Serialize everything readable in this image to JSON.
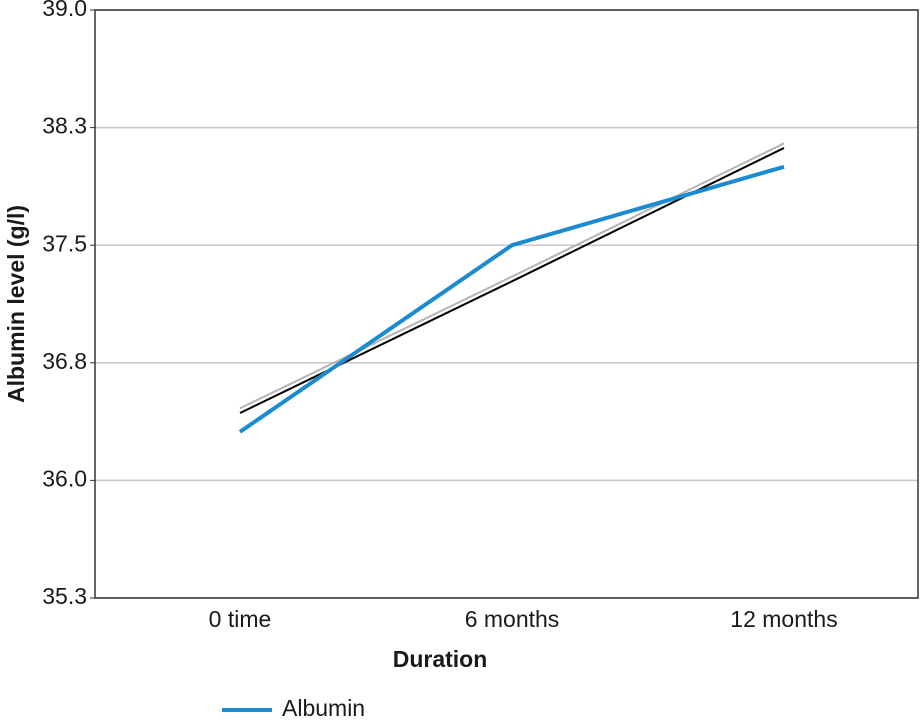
{
  "chart_data": {
    "type": "line",
    "x_label": "Duration",
    "y_label": "Albumin level (g/l)",
    "categories": [
      "0 time",
      "6 months",
      "12 months"
    ],
    "series": [
      {
        "name": "Albumin",
        "color": "#1b8ad0",
        "values": [
          36.31,
          37.5,
          38.0
        ]
      }
    ],
    "trendlines": [
      {
        "color": "#b4b4b4",
        "values": [
          36.46,
          37.3,
          38.15
        ]
      },
      {
        "color": "#000000",
        "values": [
          36.43,
          37.27,
          38.12
        ]
      }
    ],
    "ylim": [
      35.25,
      39.0
    ],
    "yticks": [
      {
        "value": 35.25,
        "label": "35.3"
      },
      {
        "value": 36.0,
        "label": "36.0"
      },
      {
        "value": 36.75,
        "label": "36.8"
      },
      {
        "value": 37.5,
        "label": "37.5"
      },
      {
        "value": 38.25,
        "label": "38.3"
      },
      {
        "value": 39.0,
        "label": "39.0"
      }
    ],
    "grid": true,
    "legend": "bottom-left"
  }
}
